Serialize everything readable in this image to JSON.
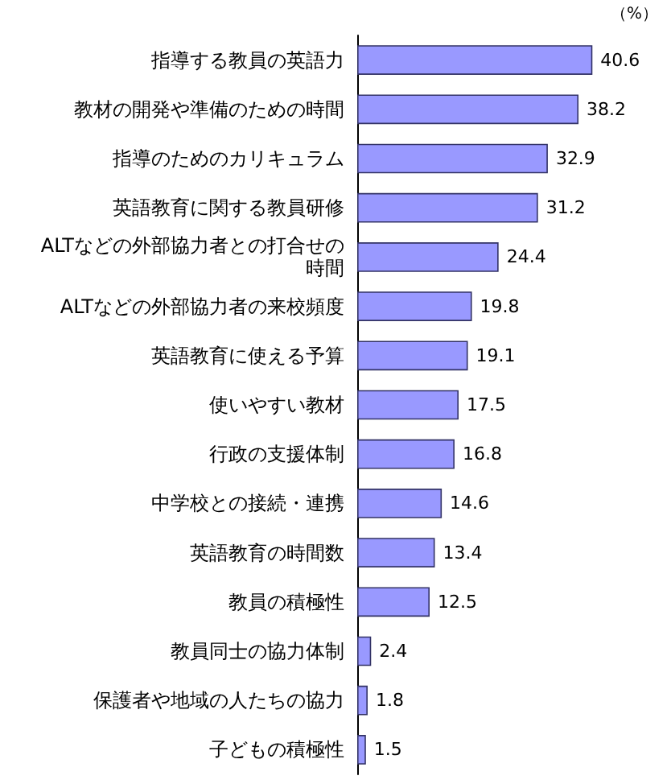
{
  "chart_data": {
    "type": "bar",
    "orientation": "horizontal",
    "data_labels": true,
    "annotations": [
      "（%）"
    ],
    "color": "#9999ff",
    "categories": [
      "指導する教員の英語力",
      "教材の開発や準備のための時間",
      "指導のためのカリキュラム",
      "英語教育に関する教員研修",
      "ALTなどの外部協力者との打合せの時間",
      "ALTなどの外部協力者の来校頻度",
      "英語教育に使える予算",
      "使いやすい教材",
      "行政の支援体制",
      "中学校との接続・連携",
      "英語教育の時間数",
      "教員の積極性",
      "教員同士の協力体制",
      "保護者や地域の人たちの協力",
      "子どもの積極性"
    ],
    "values": [
      40.6,
      38.2,
      32.9,
      31.2,
      24.4,
      19.8,
      19.1,
      17.5,
      16.8,
      14.6,
      13.4,
      12.5,
      2.4,
      1.8,
      1.5
    ]
  }
}
